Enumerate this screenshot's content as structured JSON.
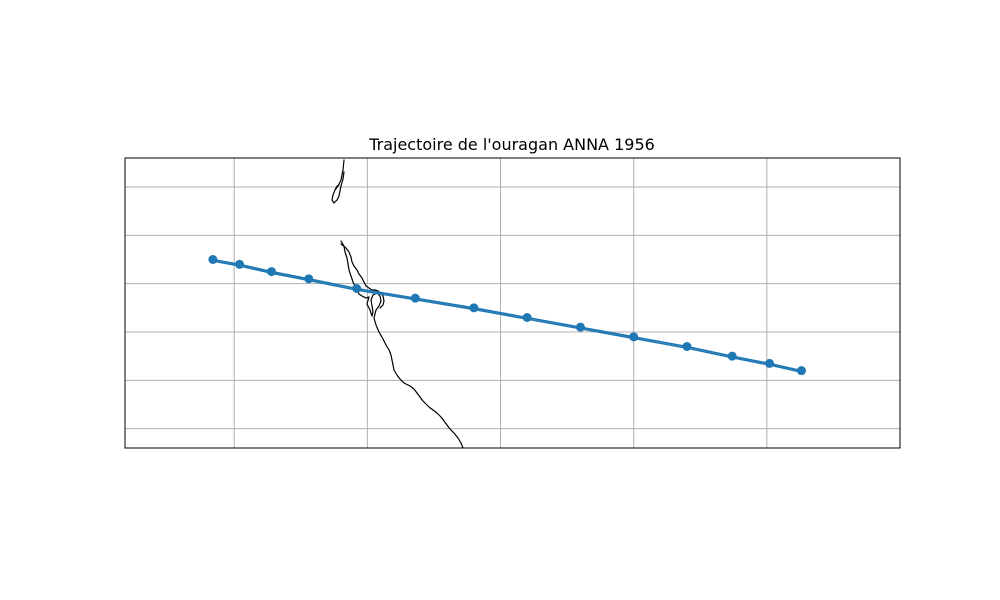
{
  "title": "Trajectoire de l'ouragan ANNA 1956",
  "colors": {
    "track": "#1f77b4",
    "coastline": "#000000",
    "grid": "#b0b0b0",
    "frame": "#000000",
    "background": "#ffffff"
  },
  "chart_data": {
    "type": "map-track",
    "title": "Trajectoire de l'ouragan ANNA 1956",
    "grid": true,
    "legend": false,
    "track": {
      "series_count": 2,
      "points": [
        {
          "x": 1.0,
          "y": 2.8
        },
        {
          "x": 2.0,
          "y": 2.6
        },
        {
          "x": 3.2,
          "y": 2.3
        },
        {
          "x": 4.6,
          "y": 2.0
        },
        {
          "x": 6.4,
          "y": 1.6
        },
        {
          "x": 8.6,
          "y": 1.2
        },
        {
          "x": 10.8,
          "y": 0.8
        },
        {
          "x": 12.8,
          "y": 0.4
        },
        {
          "x": 14.8,
          "y": 0.0
        },
        {
          "x": 16.8,
          "y": -0.4
        },
        {
          "x": 18.8,
          "y": -0.8
        },
        {
          "x": 20.5,
          "y": -1.2
        },
        {
          "x": 21.9,
          "y": -1.5
        },
        {
          "x": 23.1,
          "y": -1.8
        }
      ]
    },
    "xlim": [
      -2.3,
      26.8
    ],
    "ylim": [
      -5.0,
      7.0
    ],
    "x_grid": [
      1.8,
      6.8,
      11.8,
      16.8,
      21.8
    ],
    "y_grid": [
      -4.2,
      -2.2,
      -0.2,
      1.8,
      3.8,
      5.8
    ]
  }
}
